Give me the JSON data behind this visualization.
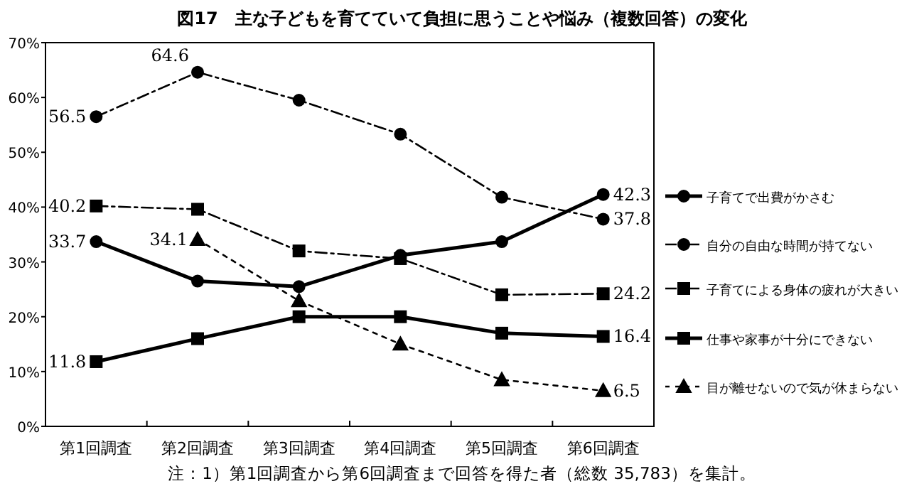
{
  "chart_data": {
    "type": "line",
    "title": "図17　主な子どもを育てていて負担に思うことや悩み（複数回答）の変化",
    "categories": [
      "第1回調査",
      "第2回調査",
      "第3回調査",
      "第4回調査",
      "第5回調査",
      "第6回調査"
    ],
    "ylim": [
      0,
      70
    ],
    "yticks": [
      {
        "value": 0,
        "label": "0%"
      },
      {
        "value": 10,
        "label": "10%"
      },
      {
        "value": 20,
        "label": "20%"
      },
      {
        "value": 30,
        "label": "30%"
      },
      {
        "value": 40,
        "label": "40%"
      },
      {
        "value": 50,
        "label": "50%"
      },
      {
        "value": 60,
        "label": "60%"
      },
      {
        "value": 70,
        "label": "70%"
      }
    ],
    "grid": false,
    "legend": "right",
    "series": [
      {
        "name": "子育てで出費がかさむ",
        "color": "#000000",
        "marker": "circle",
        "line_style": "solid",
        "values": [
          33.7,
          26.5,
          25.5,
          31.2,
          33.7,
          42.3
        ],
        "value_labels": [
          "33.7",
          null,
          null,
          null,
          null,
          "42.3"
        ]
      },
      {
        "name": "自分の自由な時間が持てない",
        "color": "#000000",
        "marker": "circle",
        "line_style": "dashed",
        "values": [
          56.5,
          64.6,
          59.5,
          53.3,
          41.8,
          37.8
        ],
        "value_labels": [
          "56.5",
          "64.6",
          null,
          null,
          null,
          "37.8"
        ]
      },
      {
        "name": "子育てによる身体の疲れが大きい",
        "color": "#000000",
        "marker": "square",
        "line_style": "dashed",
        "values": [
          40.2,
          39.6,
          32.0,
          30.6,
          24.0,
          24.2
        ],
        "value_labels": [
          "40.2",
          null,
          null,
          null,
          null,
          "24.2"
        ]
      },
      {
        "name": "仕事や家事が十分にできない",
        "color": "#000000",
        "marker": "square",
        "line_style": "solid",
        "values": [
          11.8,
          16.0,
          20.0,
          20.0,
          17.0,
          16.4
        ],
        "value_labels": [
          "11.8",
          null,
          null,
          null,
          null,
          "16.4"
        ]
      },
      {
        "name": "目が離せないので気が休まらない",
        "color": "#000000",
        "marker": "triangle",
        "line_style": "dotted",
        "values": [
          null,
          34.1,
          22.9,
          15.0,
          8.5,
          6.5
        ],
        "value_labels": [
          null,
          "34.1",
          null,
          null,
          null,
          "6.5"
        ]
      }
    ],
    "annotations": [
      "注：1）第1回調査から第6回調査まで回答を得た者（総数 35,783）を集計。"
    ]
  }
}
